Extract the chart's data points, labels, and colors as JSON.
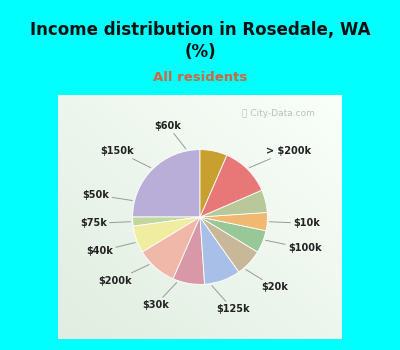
{
  "title": "Income distribution in Rosedale, WA\n(%)",
  "subtitle": "All residents",
  "title_color": "#111111",
  "subtitle_color": "#cc6644",
  "bg_cyan": "#00ffff",
  "watermark": "City-Data.com",
  "labels": [
    "> $200k",
    "$10k",
    "$100k",
    "$20k",
    "$125k",
    "$30k",
    "$200k",
    "$40k",
    "$75k",
    "$50k",
    "$150k",
    "$60k"
  ],
  "sizes": [
    23,
    2,
    6,
    9,
    7,
    8,
    6,
    5,
    4,
    5,
    11,
    6
  ],
  "colors": [
    "#b8aed8",
    "#c0d8a0",
    "#f0eca0",
    "#f0b8a8",
    "#d898a8",
    "#a8c0e8",
    "#c8b898",
    "#98c898",
    "#f0b870",
    "#b8c898",
    "#e87878",
    "#c8a030"
  ],
  "startangle": 90,
  "figsize": [
    4.0,
    3.5
  ],
  "dpi": 100
}
